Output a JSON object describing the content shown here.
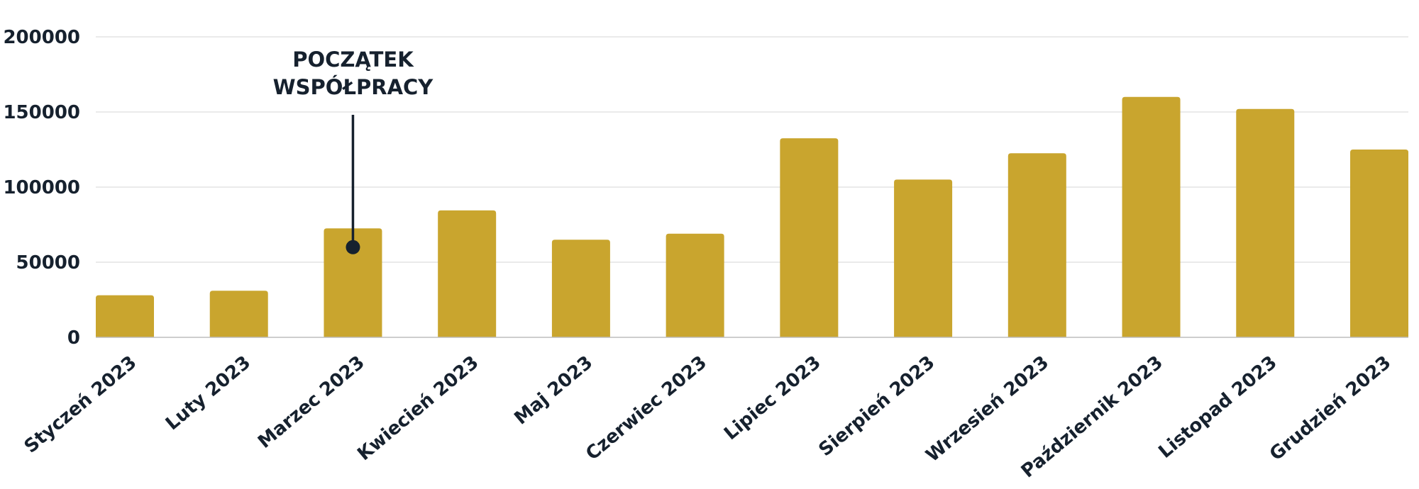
{
  "chart_data": {
    "type": "bar",
    "title": "",
    "xlabel": "",
    "ylabel": "",
    "categories": [
      "Styczeń 2023",
      "Luty 2023",
      "Marzec 2023",
      "Kwiecień 2023",
      "Maj 2023",
      "Czerwiec 2023",
      "Lipiec 2023",
      "Sierpień 2023",
      "Wrzesień 2023",
      "Październik 2023",
      "Listopad 2023",
      "Grudzień 2023"
    ],
    "values": [
      28000,
      31000,
      72500,
      84500,
      65000,
      69000,
      132500,
      105000,
      122500,
      160000,
      152000,
      125000
    ],
    "ylim": [
      0,
      200000
    ],
    "yticks": [
      0,
      50000,
      100000,
      150000,
      200000
    ],
    "ytick_labels": [
      "0",
      "50000",
      "100000",
      "150000",
      "200000"
    ],
    "grid": "horizontal",
    "legend": "none",
    "bar_color": "#c9a52e",
    "text_color": "#16212e",
    "annotation": {
      "category": "Marzec 2023",
      "value": 60000,
      "lines": [
        "POCZĄTEK",
        "WSPÓŁPRACY"
      ]
    }
  }
}
